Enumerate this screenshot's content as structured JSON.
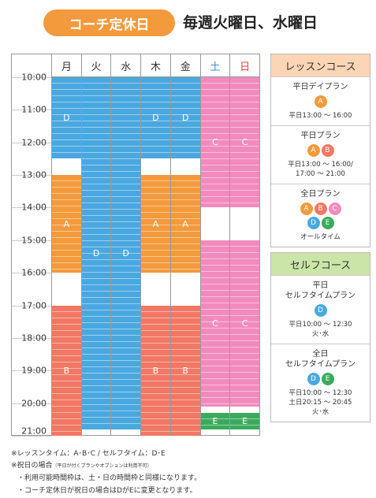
{
  "header": {
    "badge": "コーチ定休日",
    "text": "毎週火曜日、水曜日"
  },
  "letter_colors": {
    "A": "#f39a3d",
    "B": "#f07864",
    "C": "#f28bbd",
    "D": "#4aa8e0",
    "E": "#3aab5d"
  },
  "timetable": {
    "ylim": [
      10,
      21
    ],
    "times": [
      "10:00",
      "11:00",
      "12:00",
      "13:00",
      "14:00",
      "15:00",
      "16:00",
      "17:00",
      "18:00",
      "19:00",
      "20:00",
      "21:00"
    ],
    "columns": [
      {
        "day": "月",
        "day_color": "#333333",
        "blocks": [
          {
            "label": "D",
            "start": 10,
            "end": 12.5
          },
          {
            "label": "A",
            "start": 13,
            "end": 16
          },
          {
            "label": "B",
            "start": 17,
            "end": 21
          }
        ]
      },
      {
        "day": "火",
        "day_color": "#333333",
        "blocks": [
          {
            "label": "D",
            "start": 10,
            "end": 20.8
          }
        ]
      },
      {
        "day": "水",
        "day_color": "#333333",
        "blocks": [
          {
            "label": "D",
            "start": 10,
            "end": 20.8
          }
        ]
      },
      {
        "day": "木",
        "day_color": "#333333",
        "blocks": [
          {
            "label": "D",
            "start": 10,
            "end": 12.5
          },
          {
            "label": "A",
            "start": 13,
            "end": 16
          },
          {
            "label": "B",
            "start": 17,
            "end": 21
          }
        ]
      },
      {
        "day": "金",
        "day_color": "#333333",
        "blocks": [
          {
            "label": "D",
            "start": 10,
            "end": 12.5
          },
          {
            "label": "A",
            "start": 13,
            "end": 16
          },
          {
            "label": "B",
            "start": 17,
            "end": 21
          }
        ]
      },
      {
        "day": "土",
        "day_color": "#3a8fd6",
        "blocks": [
          {
            "label": "C",
            "start": 10,
            "end": 14
          },
          {
            "label": "C",
            "start": 15,
            "end": 20.1
          },
          {
            "label": "E",
            "start": 20.3,
            "end": 20.8
          }
        ]
      },
      {
        "day": "日",
        "day_color": "#e8443a",
        "blocks": [
          {
            "label": "C",
            "start": 10,
            "end": 14
          },
          {
            "label": "C",
            "start": 15,
            "end": 20.1
          },
          {
            "label": "E",
            "start": 20.3,
            "end": 20.8
          }
        ]
      }
    ]
  },
  "courses": [
    {
      "title": "レッスンコース",
      "plans": [
        {
          "name": [
            "平日デイプラン"
          ],
          "badges": [
            "A"
          ],
          "times": [
            "平日13:00 ～ 16:00"
          ]
        },
        {
          "name": [
            "平日プラン"
          ],
          "badges": [
            "A",
            "B"
          ],
          "times": [
            "平日13:00 ～ 16:00/",
            "17:00 ～ 21:00"
          ]
        },
        {
          "name": [
            "全日プラン"
          ],
          "badges": [
            "A",
            "B",
            "C",
            "D",
            "E"
          ],
          "times": [
            "オールタイム"
          ]
        }
      ]
    },
    {
      "title": "セルフコース",
      "plans": [
        {
          "name": [
            "平日",
            "セルフタイムプラン"
          ],
          "badges": [
            "D"
          ],
          "times": [
            "平日10:00 ～ 12:30",
            "火･水"
          ]
        },
        {
          "name": [
            "全日",
            "セルフタイムプラン"
          ],
          "badges": [
            "D",
            "E"
          ],
          "times": [
            "平日10:00 ～ 12:30",
            "土日20:15 ～ 20:45",
            "火･水"
          ]
        }
      ]
    }
  ],
  "notes": {
    "line1": "※レッスンタイム：A･B･C / セルフタイム：D･E",
    "line2": "※祝日の場合",
    "line2_small": "（平日が付くプランやオプションは利用不可）",
    "bullets": [
      "・利用可能時間枠は、土・日の時間枠と同様になります。",
      "・コーチ定休日が祝日の場合はDがEに変更となります。"
    ]
  }
}
